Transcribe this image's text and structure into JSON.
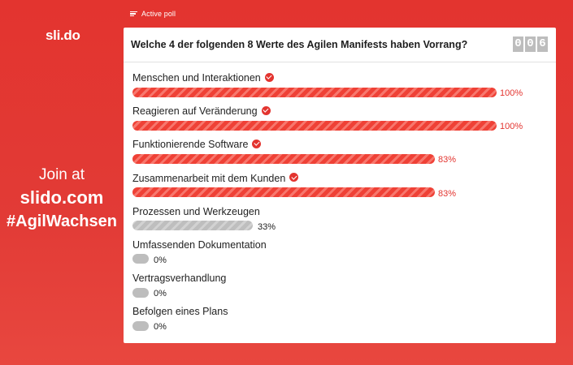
{
  "header": {
    "active_poll_label": "Active poll",
    "logo_text": "sli.do"
  },
  "join": {
    "line1": "Join at",
    "line2": "slido.com",
    "line3": "#AgilWachsen"
  },
  "poll": {
    "question": "Welche 4 der folgenden 8 Werte des Agilen Manifests haben Vorrang?",
    "counter_digits": [
      "0",
      "0",
      "6"
    ],
    "options": [
      {
        "label": "Menschen und Interaktionen",
        "percent": 100,
        "percent_label": "100%",
        "correct": true
      },
      {
        "label": "Reagieren auf Veränderung",
        "percent": 100,
        "percent_label": "100%",
        "correct": true
      },
      {
        "label": "Funktionierende Software",
        "percent": 83,
        "percent_label": "83%",
        "correct": true
      },
      {
        "label": "Zusammenarbeit mit dem Kunden",
        "percent": 83,
        "percent_label": "83%",
        "correct": true
      },
      {
        "label": "Prozessen und Werkzeugen",
        "percent": 33,
        "percent_label": "33%",
        "correct": false
      },
      {
        "label": "Umfassenden Dokumentation",
        "percent": 0,
        "percent_label": "0%",
        "correct": false
      },
      {
        "label": "Vertragsverhandlung",
        "percent": 0,
        "percent_label": "0%",
        "correct": false
      },
      {
        "label": "Befolgen eines Plans",
        "percent": 0,
        "percent_label": "0%",
        "correct": false
      }
    ]
  },
  "colors": {
    "background": "#e3342f",
    "accent": "#e3342f",
    "bar_correct": "#ef4136",
    "bar_other": "#bebebe"
  },
  "icons": {
    "active_poll": "lines-icon",
    "correct": "check-circle-icon"
  }
}
